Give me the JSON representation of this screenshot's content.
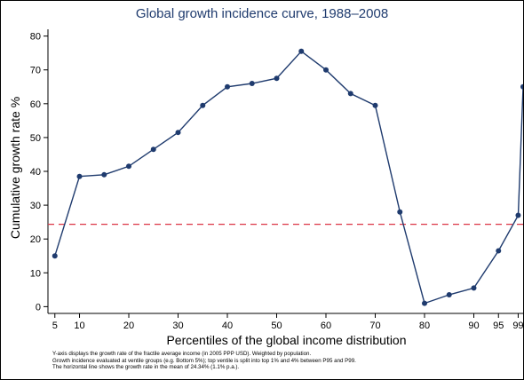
{
  "chart_data": {
    "type": "line",
    "title": "Global growth incidence curve, 1988–2008",
    "xlabel": "Percentiles of the global income distribution",
    "ylabel": "Cumulative growth rate %",
    "x_ticks": [
      5,
      10,
      20,
      30,
      40,
      50,
      60,
      70,
      80,
      90,
      95,
      99
    ],
    "y_ticks": [
      0,
      10,
      20,
      30,
      40,
      50,
      60,
      70,
      80
    ],
    "ylim": [
      -2,
      82
    ],
    "xlim": [
      3.6,
      100
    ],
    "series": [
      {
        "x": [
          5,
          10,
          15,
          20,
          25,
          30,
          35,
          40,
          45,
          50,
          55,
          60,
          65,
          70,
          75,
          80,
          85,
          90,
          95,
          99,
          100
        ],
        "values": [
          15,
          38.5,
          39,
          41.5,
          46.5,
          51.5,
          59.5,
          65,
          66,
          67.5,
          75.5,
          70,
          63,
          59.5,
          28,
          1,
          3.5,
          5.5,
          16.5,
          27,
          65
        ],
        "color": "#1f3b6e"
      }
    ],
    "reference_line": {
      "y": 24.34,
      "color": "#dc3545",
      "style": "dashed"
    },
    "grid": false
  },
  "note_lines": [
    "Y-axis displays the growth rate of the fractile average income (in 2005 PPP USD). Weighted by population.",
    "Growth incidence evaluated at ventile groups (e.g. Bottom 5%); top ventile is split into top 1% and 4% between P95 and P99.",
    "The horizontal line shows the growth rate in the mean of 24.34% (1.1% p.a.)."
  ]
}
